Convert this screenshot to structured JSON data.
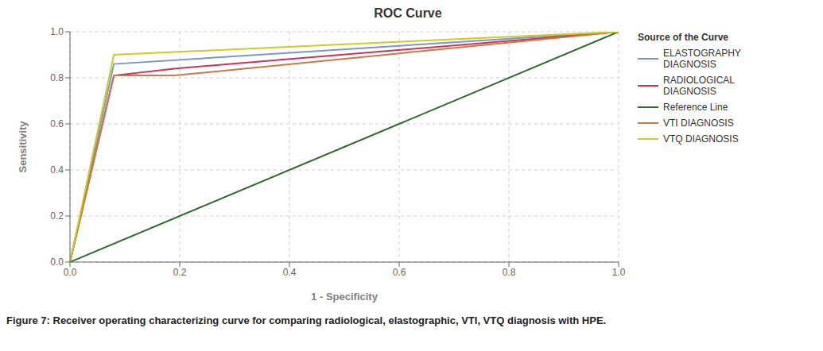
{
  "chart_data": {
    "type": "line",
    "title": "ROC Curve",
    "xlabel": "1 - Specificity",
    "ylabel": "Sensitivity",
    "legend_title": "Source of the Curve",
    "caption": "Figure 7: Receiver operating characterizing curve for comparing radiological, elastographic, VTI, VTQ diagnosis with HPE.",
    "series": [
      {
        "name": "ELASTOGRAPHY\nDIAGNOSIS",
        "color": "#7799CC",
        "x": [
          0.0,
          0.08,
          1.0
        ],
        "values": [
          0.0,
          0.86,
          1.0
        ]
      },
      {
        "name": "RADIOLOGICAL\nDIAGNOSIS",
        "color": "#CC3355",
        "x": [
          0.0,
          0.08,
          0.19,
          1.0
        ],
        "values": [
          0.0,
          0.81,
          0.84,
          1.0
        ]
      },
      {
        "name": "Reference Line",
        "color": "#2D6B2D",
        "x": [
          0.0,
          1.0
        ],
        "values": [
          0.0,
          1.0
        ]
      },
      {
        "name": "VTI DIAGNOSIS",
        "color": "#CC7744",
        "x": [
          0.0,
          0.08,
          0.19,
          1.0
        ],
        "values": [
          0.0,
          0.81,
          0.81,
          1.0
        ]
      },
      {
        "name": "VTQ DIAGNOSIS",
        "color": "#CCCC22",
        "x": [
          0.0,
          0.08,
          1.0
        ],
        "values": [
          0.0,
          0.9,
          1.0
        ]
      }
    ],
    "xlim": [
      0.0,
      1.0
    ],
    "ylim": [
      0.0,
      1.0
    ],
    "xticks": [
      {
        "value": 0.0,
        "label": "0.0"
      },
      0.2,
      0.4,
      0.6,
      0.8,
      {
        "value": 1.0,
        "label": "1.0"
      }
    ],
    "yticks": [
      {
        "value": 0.0,
        "label": "0.0"
      },
      0.2,
      0.4,
      0.6,
      0.8,
      {
        "value": 1.0,
        "label": "1.0"
      }
    ],
    "grid": true,
    "legend": "right"
  }
}
